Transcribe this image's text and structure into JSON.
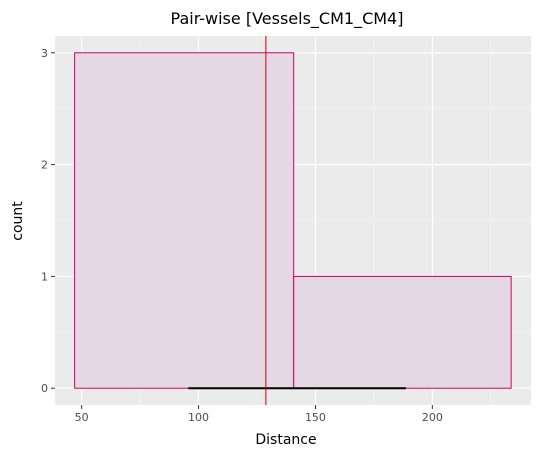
{
  "chart_data": {
    "type": "bar",
    "title": "Pair-wise [Vessels_CM1_CM4]",
    "xlabel": "Distance",
    "ylabel": "count",
    "xlim": [
      38.6,
      242.2
    ],
    "ylim": [
      -0.15,
      3.15
    ],
    "x_ticks": [
      50,
      100,
      150,
      200
    ],
    "y_ticks": [
      0,
      1,
      2,
      3
    ],
    "bins": [
      {
        "x_start": 47.0,
        "x_end": 140.7,
        "count": 3
      },
      {
        "x_start": 140.7,
        "x_end": 233.7,
        "count": 1
      }
    ],
    "vline": {
      "x": 128.8
    },
    "interval": {
      "x_start": 95.6,
      "x_end": 188.7,
      "y": 0
    },
    "grid": true,
    "legend": "none",
    "colors": {
      "panel_background": "#ebebeb",
      "grid": "#ffffff",
      "bar_fill": "#e5d8e5",
      "bar_stroke": "#cc0066",
      "vline": "#cc0000",
      "interval": "#000000"
    }
  }
}
